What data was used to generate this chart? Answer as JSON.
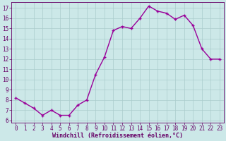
{
  "x": [
    0,
    1,
    2,
    3,
    4,
    5,
    6,
    7,
    8,
    9,
    10,
    11,
    12,
    13,
    14,
    15,
    16,
    17,
    18,
    19,
    20,
    21,
    22,
    23
  ],
  "y": [
    8.2,
    7.7,
    7.2,
    6.5,
    7.0,
    6.5,
    6.5,
    7.5,
    8.0,
    10.5,
    12.2,
    14.8,
    15.2,
    15.0,
    16.0,
    17.2,
    16.7,
    16.5,
    15.9,
    16.3,
    15.3,
    13.0,
    12.0,
    12.0
  ],
  "line_color": "#990099",
  "marker": "+",
  "marker_size": 3.5,
  "line_width": 1.0,
  "xlabel": "Windchill (Refroidissement éolien,°C)",
  "xlabel_fontsize": 6.0,
  "xlabel_color": "#660066",
  "tick_label_color": "#660066",
  "background_color": "#cce8e8",
  "grid_color": "#aacccc",
  "ylim_min": 5.8,
  "ylim_max": 17.6,
  "yticks": [
    6,
    7,
    8,
    9,
    10,
    11,
    12,
    13,
    14,
    15,
    16,
    17
  ],
  "xticks": [
    0,
    1,
    2,
    3,
    4,
    5,
    6,
    7,
    8,
    9,
    10,
    11,
    12,
    13,
    14,
    15,
    16,
    17,
    18,
    19,
    20,
    21,
    22,
    23
  ],
  "tick_fontsize": 5.5,
  "markeredgewidth": 1.0
}
